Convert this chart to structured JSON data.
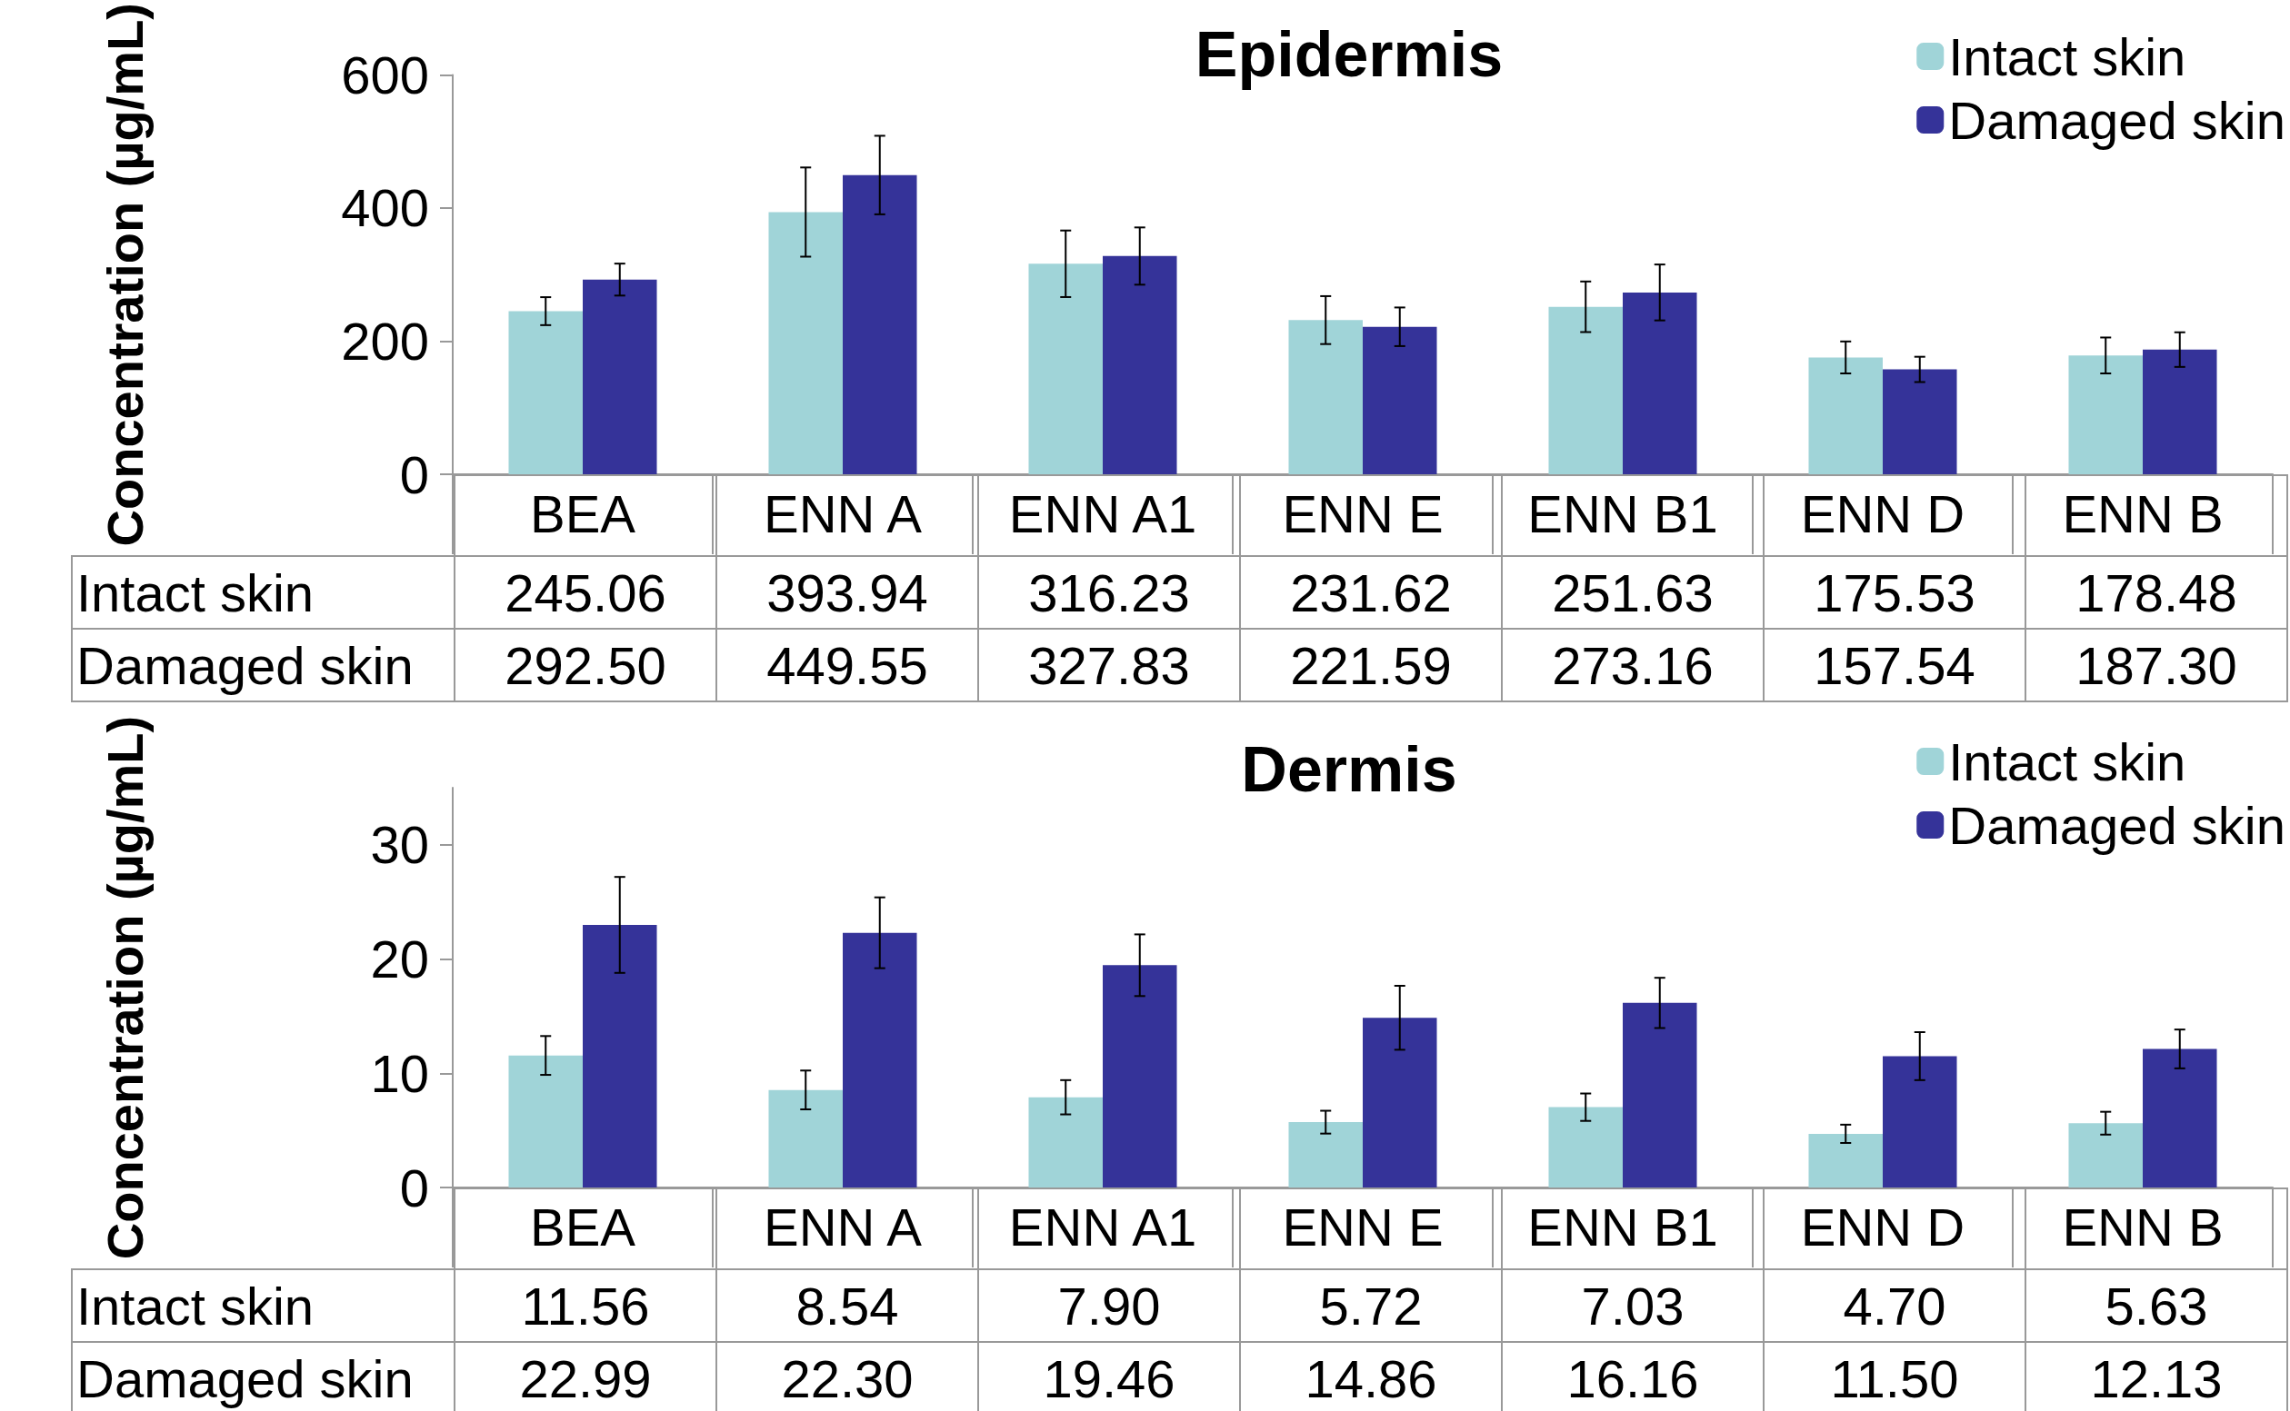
{
  "chart_data": [
    {
      "type": "bar",
      "title": "Epidermis",
      "ylabel": "Concentration (µg/mL)",
      "categories": [
        "BEA",
        "ENN A",
        "ENN A1",
        "ENN E",
        "ENN B1",
        "ENN D",
        "ENN B"
      ],
      "series": [
        {
          "name": "Intact skin",
          "color": "#a0d4d8",
          "values": [
            245.06,
            393.94,
            316.23,
            231.62,
            251.63,
            175.53,
            178.48
          ],
          "errors": [
            21,
            67,
            50,
            36,
            38,
            24,
            27
          ],
          "value_labels": [
            "245.06",
            "393.94",
            "316.23",
            "231.62",
            "251.63",
            "175.53",
            "178.48"
          ]
        },
        {
          "name": "Damaged skin",
          "color": "#353399",
          "values": [
            292.5,
            449.55,
            327.83,
            221.59,
            273.16,
            157.54,
            187.3
          ],
          "errors": [
            24,
            59,
            43,
            29,
            42,
            19,
            26
          ],
          "value_labels": [
            "292.50",
            "449.55",
            "327.83",
            "221.59",
            "273.16",
            "157.54",
            "187.30"
          ]
        }
      ],
      "ylim": [
        0,
        600
      ],
      "yticks": [
        0,
        200,
        400,
        600
      ],
      "grid": false,
      "legend": "top right"
    },
    {
      "type": "bar",
      "title": "Dermis",
      "ylabel": "Concentration (µg/mL)",
      "categories": [
        "BEA",
        "ENN A",
        "ENN A1",
        "ENN E",
        "ENN B1",
        "ENN D",
        "ENN B"
      ],
      "series": [
        {
          "name": "Intact skin",
          "color": "#a0d4d8",
          "values": [
            11.56,
            8.54,
            7.9,
            5.72,
            7.03,
            4.7,
            5.63
          ],
          "errors": [
            1.7,
            1.7,
            1.5,
            1.0,
            1.2,
            0.8,
            1.0
          ],
          "value_labels": [
            "11.56",
            "8.54",
            "7.90",
            "5.72",
            "7.03",
            "4.70",
            "5.63"
          ]
        },
        {
          "name": "Damaged skin",
          "color": "#353399",
          "values": [
            22.99,
            22.3,
            19.46,
            14.86,
            16.16,
            11.5,
            12.13
          ],
          "errors": [
            4.2,
            3.1,
            2.7,
            2.8,
            2.2,
            2.1,
            1.7
          ],
          "value_labels": [
            "22.99",
            "22.30",
            "19.46",
            "14.86",
            "16.16",
            "11.50",
            "12.13"
          ]
        }
      ],
      "ylim": [
        0,
        35
      ],
      "yticks": [
        0,
        10,
        20,
        30
      ],
      "grid": false,
      "legend": "top right"
    }
  ]
}
